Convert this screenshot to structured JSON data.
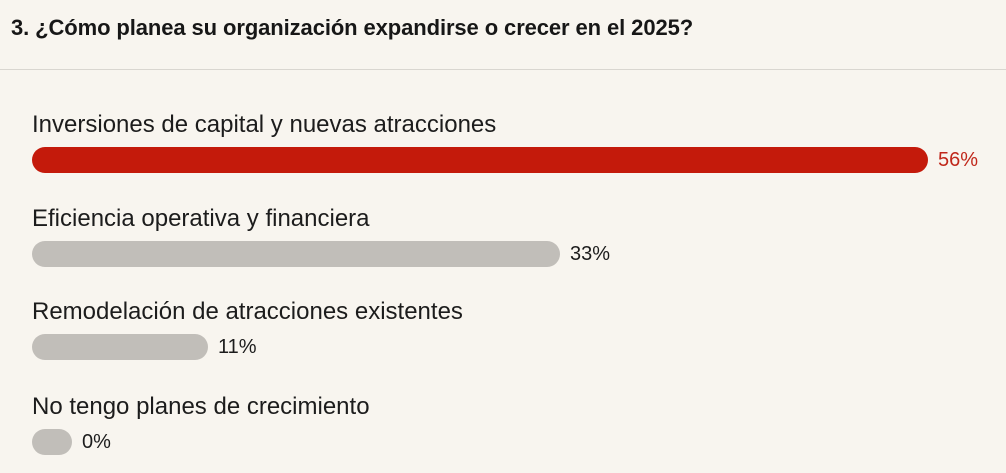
{
  "question": {
    "title": "3. ¿Cómo planea su organización expandirse o crecer en el 2025?"
  },
  "colors": {
    "highlight_bar": "#c41a0b",
    "highlight_text": "#c0281b",
    "default_bar": "#c1beb9",
    "default_text": "#1c1c1c"
  },
  "chart_data": {
    "type": "bar",
    "orientation": "horizontal",
    "title": "3. ¿Cómo planea su organización expandirse o crecer en el 2025?",
    "categories": [
      "Inversiones de capital y nuevas atracciones",
      "Eficiencia operativa y financiera",
      "Remodelación de atracciones existentes",
      "No tengo planes de crecimiento"
    ],
    "values": [
      56,
      33,
      11,
      0
    ],
    "value_labels": [
      "56%",
      "33%",
      "11%",
      "0%"
    ],
    "unit": "%",
    "highlighted_index": 0,
    "xlim": [
      0,
      56
    ],
    "grid": false
  }
}
